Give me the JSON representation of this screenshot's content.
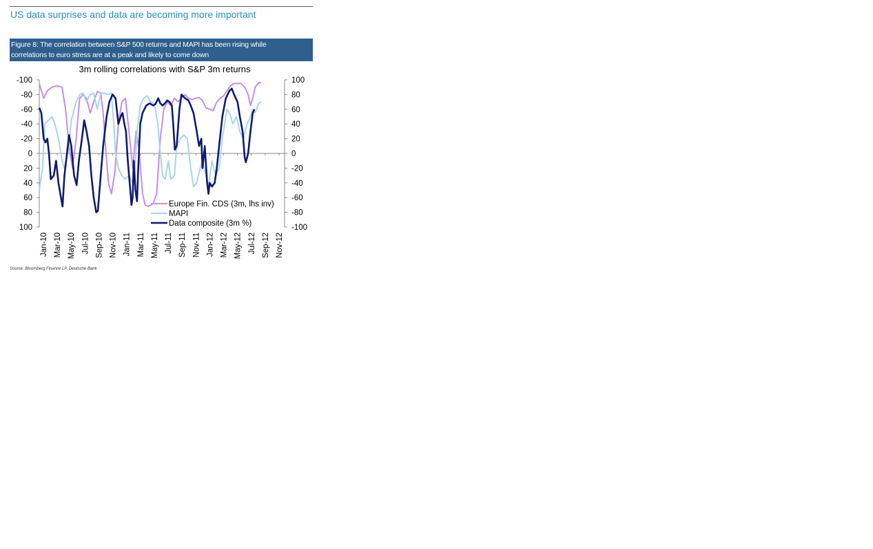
{
  "section_title": "US data surprises and data are becoming more important",
  "figure": {
    "caption_line1": "Figure 8: The correlation between S&P 500 returns and MAPI has been rising while",
    "caption_line2": "correlations to euro stress are at a peak and likely to come down",
    "source": "Source: Bloomberg Finance LP, Deutsche Bank"
  },
  "chart_data": {
    "type": "line",
    "title": "3m rolling correlations with S&P 3m returns",
    "x_tick_labels": [
      "Jan-10",
      "Mar-10",
      "May-10",
      "Jul-10",
      "Sep-10",
      "Nov-10",
      "Jan-11",
      "Mar-11",
      "May-11",
      "Jul-11",
      "Sep-11",
      "Nov-11",
      "Jan-12",
      "Mar-12",
      "May-12",
      "Jul-12",
      "Sep-12",
      "Nov-12"
    ],
    "x_range": [
      "2010-01-01",
      "2012-11-30"
    ],
    "left_axis": {
      "ticks": [
        "-100",
        "-80",
        "-60",
        "-40",
        "-20",
        "0",
        "20",
        "40",
        "60",
        "80",
        "100"
      ],
      "inverted": true,
      "range": [
        -100,
        100
      ]
    },
    "right_axis": {
      "ticks": [
        "100",
        "80",
        "60",
        "40",
        "20",
        "0",
        "-20",
        "-40",
        "-60",
        "-80",
        "-100"
      ],
      "range": [
        -100,
        100
      ]
    },
    "legend_position": "bottom-right",
    "series": [
      {
        "name": "Europe Fin. CDS (3m, lhs inv)",
        "axis": "left-inverted",
        "color": "#c48ee8",
        "points": [
          [
            "2010-01-01",
            -95
          ],
          [
            "2010-01-20",
            -75
          ],
          [
            "2010-02-05",
            -85
          ],
          [
            "2010-02-25",
            -90
          ],
          [
            "2010-03-20",
            -92
          ],
          [
            "2010-04-10",
            -90
          ],
          [
            "2010-04-25",
            -60
          ],
          [
            "2010-05-10",
            -10
          ],
          [
            "2010-05-25",
            20
          ],
          [
            "2010-06-10",
            -20
          ],
          [
            "2010-06-25",
            -75
          ],
          [
            "2010-07-10",
            -80
          ],
          [
            "2010-07-25",
            -75
          ],
          [
            "2010-08-10",
            -55
          ],
          [
            "2010-08-25",
            -70
          ],
          [
            "2010-09-10",
            -84
          ],
          [
            "2010-09-25",
            -82
          ],
          [
            "2010-10-05",
            -55
          ],
          [
            "2010-10-15",
            -10
          ],
          [
            "2010-10-28",
            40
          ],
          [
            "2010-11-10",
            55
          ],
          [
            "2010-11-25",
            25
          ],
          [
            "2010-12-10",
            -40
          ],
          [
            "2010-12-25",
            -70
          ],
          [
            "2011-01-10",
            -75
          ],
          [
            "2011-01-25",
            -30
          ],
          [
            "2011-02-10",
            20
          ],
          [
            "2011-02-25",
            -30
          ],
          [
            "2011-03-10",
            -5
          ],
          [
            "2011-03-25",
            55
          ],
          [
            "2011-04-05",
            70
          ],
          [
            "2011-04-20",
            72
          ],
          [
            "2011-05-10",
            68
          ],
          [
            "2011-05-25",
            55
          ],
          [
            "2011-06-10",
            -20
          ],
          [
            "2011-06-25",
            -60
          ],
          [
            "2011-07-10",
            -70
          ],
          [
            "2011-07-25",
            -65
          ],
          [
            "2011-08-10",
            -75
          ],
          [
            "2011-08-25",
            -70
          ],
          [
            "2011-09-10",
            -75
          ],
          [
            "2011-09-25",
            -80
          ],
          [
            "2011-10-10",
            -75
          ],
          [
            "2011-10-25",
            -73
          ],
          [
            "2011-11-10",
            -75
          ],
          [
            "2011-11-25",
            -76
          ],
          [
            "2011-12-10",
            -72
          ],
          [
            "2011-12-25",
            -62
          ],
          [
            "2012-01-10",
            -60
          ],
          [
            "2012-01-25",
            -58
          ],
          [
            "2012-02-10",
            -70
          ],
          [
            "2012-02-25",
            -75
          ],
          [
            "2012-03-10",
            -78
          ],
          [
            "2012-03-25",
            -85
          ],
          [
            "2012-04-10",
            -92
          ],
          [
            "2012-04-25",
            -95
          ],
          [
            "2012-05-10",
            -95
          ],
          [
            "2012-05-25",
            -95
          ],
          [
            "2012-06-10",
            -90
          ],
          [
            "2012-06-25",
            -80
          ],
          [
            "2012-07-05",
            -65
          ],
          [
            "2012-07-15",
            -75
          ],
          [
            "2012-07-25",
            -90
          ],
          [
            "2012-08-10",
            -96
          ],
          [
            "2012-08-20",
            -96
          ]
        ]
      },
      {
        "name": "MAPI",
        "axis": "right",
        "color": "#a9d6e3",
        "points": [
          [
            "2010-01-01",
            -50
          ],
          [
            "2010-01-15",
            -20
          ],
          [
            "2010-01-25",
            40
          ],
          [
            "2010-02-10",
            45
          ],
          [
            "2010-02-25",
            50
          ],
          [
            "2010-03-10",
            40
          ],
          [
            "2010-03-25",
            20
          ],
          [
            "2010-04-10",
            -10
          ],
          [
            "2010-04-20",
            -20
          ],
          [
            "2010-05-05",
            0
          ],
          [
            "2010-05-20",
            45
          ],
          [
            "2010-06-10",
            70
          ],
          [
            "2010-06-25",
            80
          ],
          [
            "2010-07-10",
            82
          ],
          [
            "2010-07-25",
            70
          ],
          [
            "2010-08-10",
            80
          ],
          [
            "2010-08-25",
            82
          ],
          [
            "2010-09-10",
            60
          ],
          [
            "2010-09-25",
            82
          ],
          [
            "2010-10-10",
            82
          ],
          [
            "2010-10-25",
            80
          ],
          [
            "2010-11-10",
            82
          ],
          [
            "2010-11-20",
            40
          ],
          [
            "2010-11-28",
            0
          ],
          [
            "2010-12-10",
            -20
          ],
          [
            "2010-12-25",
            -30
          ],
          [
            "2011-01-10",
            -35
          ],
          [
            "2011-01-25",
            -30
          ],
          [
            "2011-02-10",
            -40
          ],
          [
            "2011-02-20",
            -20
          ],
          [
            "2011-03-01",
            30
          ],
          [
            "2011-03-15",
            65
          ],
          [
            "2011-03-30",
            75
          ],
          [
            "2011-04-15",
            78
          ],
          [
            "2011-04-30",
            70
          ],
          [
            "2011-05-15",
            68
          ],
          [
            "2011-05-30",
            40
          ],
          [
            "2011-06-10",
            0
          ],
          [
            "2011-06-20",
            -30
          ],
          [
            "2011-07-01",
            -35
          ],
          [
            "2011-07-15",
            -10
          ],
          [
            "2011-07-25",
            -35
          ],
          [
            "2011-08-10",
            -30
          ],
          [
            "2011-08-20",
            10
          ],
          [
            "2011-09-05",
            20
          ],
          [
            "2011-09-20",
            25
          ],
          [
            "2011-10-05",
            20
          ],
          [
            "2011-10-20",
            -20
          ],
          [
            "2011-11-01",
            -45
          ],
          [
            "2011-11-15",
            -40
          ],
          [
            "2011-11-30",
            -20
          ],
          [
            "2011-12-10",
            -10
          ],
          [
            "2011-12-25",
            -30
          ],
          [
            "2012-01-05",
            -45
          ],
          [
            "2012-01-20",
            -10
          ],
          [
            "2012-02-05",
            -30
          ],
          [
            "2012-02-20",
            -20
          ],
          [
            "2012-03-05",
            20
          ],
          [
            "2012-03-15",
            40
          ],
          [
            "2012-03-25",
            60
          ],
          [
            "2012-04-05",
            55
          ],
          [
            "2012-04-20",
            40
          ],
          [
            "2012-05-05",
            50
          ],
          [
            "2012-05-20",
            30
          ],
          [
            "2012-06-05",
            20
          ],
          [
            "2012-06-20",
            40
          ],
          [
            "2012-07-05",
            50
          ],
          [
            "2012-07-15",
            60
          ],
          [
            "2012-07-25",
            55
          ],
          [
            "2012-08-10",
            68
          ],
          [
            "2012-08-20",
            70
          ]
        ]
      },
      {
        "name": "Data composite (3m %)",
        "axis": "right",
        "color": "#0f1a6e",
        "points": [
          [
            "2010-01-01",
            62
          ],
          [
            "2010-01-10",
            55
          ],
          [
            "2010-01-20",
            20
          ],
          [
            "2010-01-28",
            15
          ],
          [
            "2010-02-05",
            20
          ],
          [
            "2010-02-12",
            0
          ],
          [
            "2010-02-20",
            -35
          ],
          [
            "2010-03-05",
            -30
          ],
          [
            "2010-03-15",
            -10
          ],
          [
            "2010-03-25",
            -40
          ],
          [
            "2010-04-05",
            -60
          ],
          [
            "2010-04-12",
            -72
          ],
          [
            "2010-04-20",
            -30
          ],
          [
            "2010-05-01",
            0
          ],
          [
            "2010-05-10",
            25
          ],
          [
            "2010-05-20",
            10
          ],
          [
            "2010-06-01",
            -30
          ],
          [
            "2010-06-12",
            -43
          ],
          [
            "2010-06-22",
            -10
          ],
          [
            "2010-07-05",
            20
          ],
          [
            "2010-07-15",
            45
          ],
          [
            "2010-07-25",
            30
          ],
          [
            "2010-08-05",
            10
          ],
          [
            "2010-08-15",
            -30
          ],
          [
            "2010-08-25",
            -60
          ],
          [
            "2010-09-05",
            -80
          ],
          [
            "2010-09-12",
            -78
          ],
          [
            "2010-09-22",
            -40
          ],
          [
            "2010-10-05",
            10
          ],
          [
            "2010-10-20",
            50
          ],
          [
            "2010-11-01",
            70
          ],
          [
            "2010-11-15",
            80
          ],
          [
            "2010-11-28",
            75
          ],
          [
            "2010-12-10",
            40
          ],
          [
            "2010-12-20",
            50
          ],
          [
            "2010-12-28",
            55
          ],
          [
            "2011-01-05",
            40
          ],
          [
            "2011-01-12",
            30
          ],
          [
            "2011-01-20",
            -10
          ],
          [
            "2011-01-28",
            -40
          ],
          [
            "2011-02-05",
            -70
          ],
          [
            "2011-02-10",
            -60
          ],
          [
            "2011-02-15",
            -10
          ],
          [
            "2011-02-22",
            -50
          ],
          [
            "2011-03-01",
            -65
          ],
          [
            "2011-03-05",
            -30
          ],
          [
            "2011-03-15",
            40
          ],
          [
            "2011-03-25",
            55
          ],
          [
            "2011-04-10",
            65
          ],
          [
            "2011-04-25",
            68
          ],
          [
            "2011-05-10",
            65
          ],
          [
            "2011-05-20",
            67
          ],
          [
            "2011-06-01",
            75
          ],
          [
            "2011-06-10",
            68
          ],
          [
            "2011-06-20",
            65
          ],
          [
            "2011-06-30",
            68
          ],
          [
            "2011-07-10",
            72
          ],
          [
            "2011-07-20",
            70
          ],
          [
            "2011-07-30",
            65
          ],
          [
            "2011-08-05",
            40
          ],
          [
            "2011-08-12",
            5
          ],
          [
            "2011-08-20",
            10
          ],
          [
            "2011-09-01",
            60
          ],
          [
            "2011-09-10",
            80
          ],
          [
            "2011-09-25",
            75
          ],
          [
            "2011-10-10",
            72
          ],
          [
            "2011-10-20",
            65
          ],
          [
            "2011-11-01",
            55
          ],
          [
            "2011-11-15",
            30
          ],
          [
            "2011-11-25",
            10
          ],
          [
            "2011-12-05",
            20
          ],
          [
            "2011-12-10",
            -20
          ],
          [
            "2011-12-20",
            10
          ],
          [
            "2011-12-30",
            -40
          ],
          [
            "2012-01-05",
            -55
          ],
          [
            "2012-01-10",
            -40
          ],
          [
            "2012-01-20",
            -45
          ],
          [
            "2012-02-01",
            -40
          ],
          [
            "2012-02-10",
            -20
          ],
          [
            "2012-02-20",
            10
          ],
          [
            "2012-03-05",
            50
          ],
          [
            "2012-03-20",
            75
          ],
          [
            "2012-04-05",
            85
          ],
          [
            "2012-04-15",
            88
          ],
          [
            "2012-04-25",
            80
          ],
          [
            "2012-05-10",
            70
          ],
          [
            "2012-05-20",
            50
          ],
          [
            "2012-06-01",
            30
          ],
          [
            "2012-06-10",
            -5
          ],
          [
            "2012-06-15",
            -12
          ],
          [
            "2012-06-25",
            0
          ],
          [
            "2012-07-05",
            30
          ],
          [
            "2012-07-15",
            55
          ],
          [
            "2012-07-22",
            60
          ]
        ]
      }
    ]
  }
}
